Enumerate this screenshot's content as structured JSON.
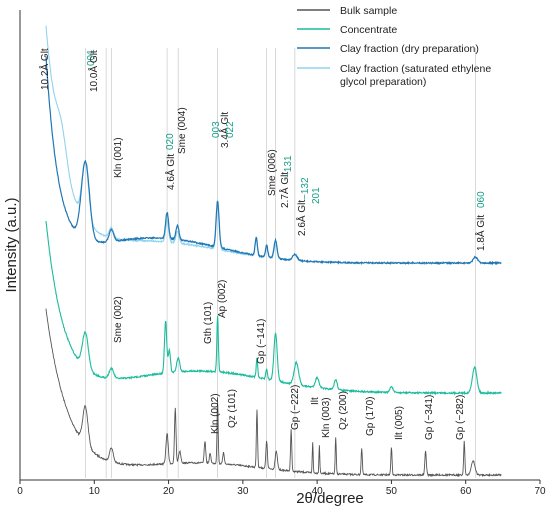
{
  "chart_data": {
    "type": "line",
    "title": "",
    "xlabel": "2θ/degree",
    "ylabel": "Intensity (a.u.)",
    "xlim": [
      0,
      70
    ],
    "xticks": [
      0,
      10,
      20,
      30,
      40,
      50,
      60,
      70
    ],
    "grid": false,
    "legend_placement": "top-right",
    "series": [
      {
        "name": "Bulk sample",
        "color": "#555555"
      },
      {
        "name": "Concentrate",
        "color": "#1abc9c"
      },
      {
        "name": "Clay fraction (dry preparation)",
        "color": "#1f77b4"
      },
      {
        "name": "Clay fraction (saturated ethylene glycol preparation)",
        "color": "#8fd3f0"
      }
    ],
    "reference_lines_x": [
      8.8,
      11.6,
      12.3,
      19.8,
      21.3,
      26.6,
      33.2,
      34.4,
      37.0,
      61.3
    ],
    "annotations": [
      {
        "text": "10.2Å Glt",
        "x": 8.2,
        "color": "#222222"
      },
      {
        "text": "001",
        "x": 9.4,
        "color": "#16a085"
      },
      {
        "text": "10.0Å Glt",
        "x": 9.0,
        "color": "#222222"
      },
      {
        "text": "Kln (001)",
        "x": 12.3,
        "color": "#222222"
      },
      {
        "text": "4.6Å Glt",
        "x": 19.8,
        "color": "#222222"
      },
      {
        "text": "020",
        "x": 20.4,
        "color": "#16a085"
      },
      {
        "text": "Sme (004)",
        "x": 21.2,
        "color": "#222222"
      },
      {
        "text": "3.4Å Glt",
        "x": 26.7,
        "color": "#222222"
      },
      {
        "text": "003",
        "x": 27.2,
        "color": "#16a085"
      },
      {
        "text": "022",
        "x": 28.2,
        "color": "#16a085"
      },
      {
        "text": "Sme (006)",
        "x": 33.2,
        "color": "#222222"
      },
      {
        "text": "2.7Å Glt",
        "x": 34.4,
        "color": "#222222"
      },
      {
        "text": "−131",
        "x": 35.3,
        "color": "#16a085"
      },
      {
        "text": "2.6Å Glt",
        "x": 37.0,
        "color": "#222222"
      },
      {
        "text": "−132",
        "x": 37.9,
        "color": "#16a085"
      },
      {
        "text": "201",
        "x": 38.9,
        "color": "#16a085"
      },
      {
        "text": "1.8Å Glt",
        "x": 61.3,
        "color": "#222222"
      },
      {
        "text": "060",
        "x": 61.3,
        "color": "#16a085"
      },
      {
        "text": "Sme (002)",
        "x": 11.6,
        "color": "#222222"
      },
      {
        "text": "Gth (101)",
        "x": 21.2,
        "color": "#222222"
      },
      {
        "text": "Ap (002)",
        "x": 25.9,
        "color": "#222222"
      },
      {
        "text": "Gp (−141)",
        "x": 31.2,
        "color": "#222222"
      },
      {
        "text": "Kln (002)",
        "x": 24.9,
        "color": "#222222"
      },
      {
        "text": "Qz (101)",
        "x": 26.6,
        "color": "#222222"
      },
      {
        "text": "Gp (−222)",
        "x": 36.2,
        "color": "#222222"
      },
      {
        "text": "Ilt",
        "x": 39.4,
        "color": "#222222"
      },
      {
        "text": "Kln (003)",
        "x": 40.4,
        "color": "#222222"
      },
      {
        "text": "Qz (200)",
        "x": 42.5,
        "color": "#222222"
      },
      {
        "text": "Gp (170)",
        "x": 46.0,
        "color": "#222222"
      },
      {
        "text": "Ilt (005)",
        "x": 50.0,
        "color": "#222222"
      },
      {
        "text": "Gp (−341)",
        "x": 54.6,
        "color": "#222222"
      },
      {
        "text": "Gp (−282)",
        "x": 59.7,
        "color": "#222222"
      }
    ]
  }
}
